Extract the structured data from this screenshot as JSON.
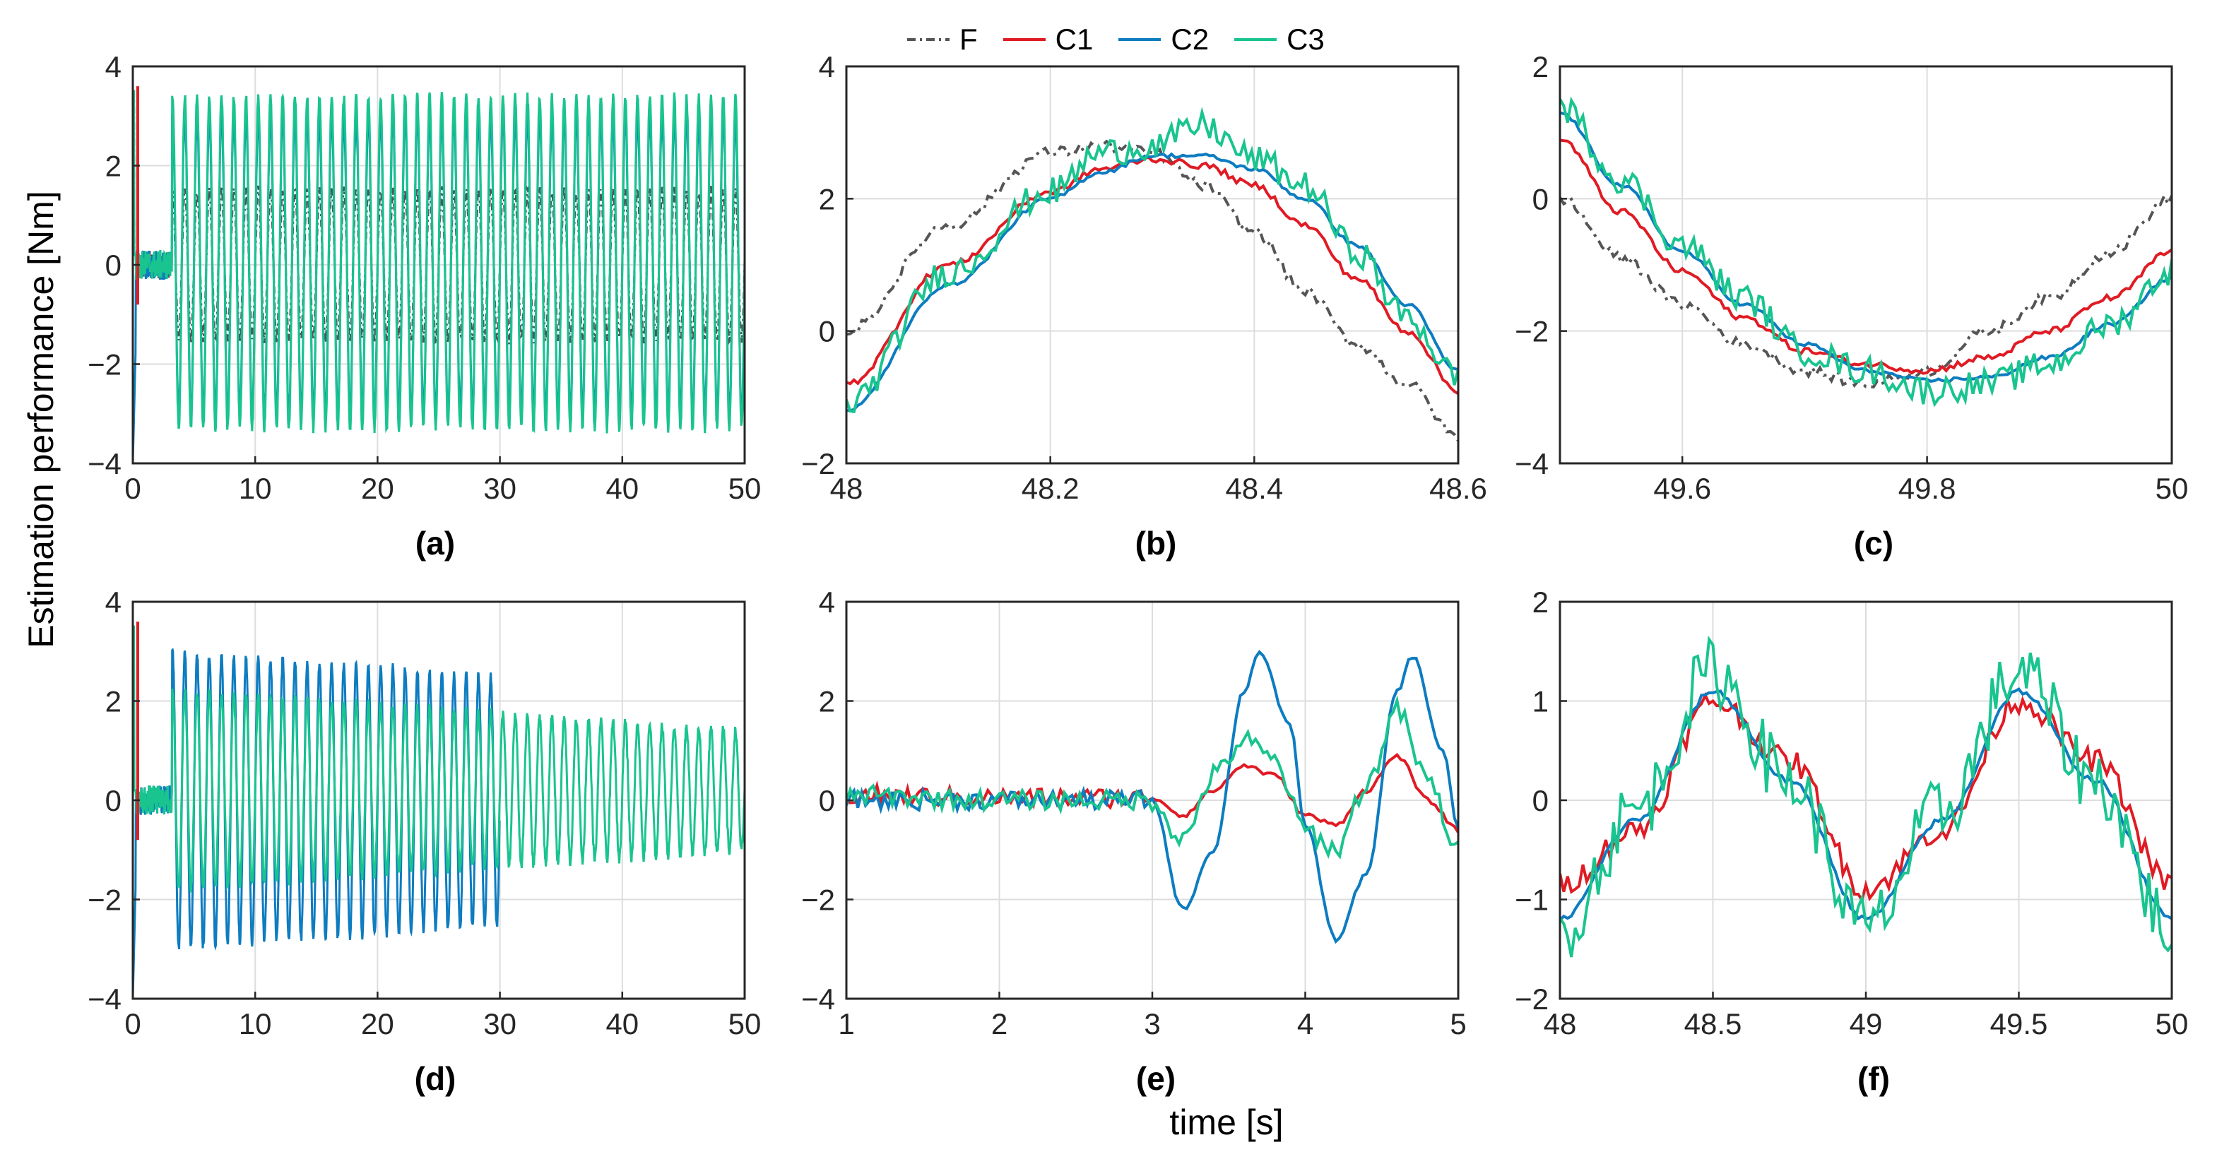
{
  "figure": {
    "ylabel": "Estimation performance [Nm]",
    "xlabel": "time [s]",
    "legend": [
      {
        "name": "F",
        "color": "#555555",
        "dash": "dash-dot"
      },
      {
        "name": "C1",
        "color": "#e01b24",
        "dash": "solid"
      },
      {
        "name": "C2",
        "color": "#0d7cc0",
        "dash": "solid"
      },
      {
        "name": "C3",
        "color": "#19c48f",
        "dash": "solid"
      }
    ],
    "legend_placement": "top-center"
  },
  "chart_data": [
    {
      "id": "a",
      "label": "(a)",
      "type": "line",
      "xlim": [
        0,
        50
      ],
      "ylim": [
        -4,
        4
      ],
      "xticks": [
        0,
        10,
        20,
        30,
        40,
        50
      ],
      "yticks": [
        -4,
        -2,
        0,
        2,
        4
      ],
      "grid": true,
      "series_description": "C1, C2, C3 oscillate near ±3.3 Nm after t≈3 s; small noise ±0.3 before; initial spikes at t≈0",
      "envelopes": {
        "C3": [
          -3.3,
          3.4
        ],
        "C2": [
          -3.0,
          3.0
        ],
        "F": [
          -1.5,
          1.5
        ]
      }
    },
    {
      "id": "b",
      "label": "(b)",
      "type": "line",
      "xlim": [
        48,
        48.6
      ],
      "ylim": [
        -2,
        4
      ],
      "xticks": [
        48,
        48.2,
        48.4,
        48.6
      ],
      "yticks": [
        -2,
        0,
        2,
        4
      ],
      "grid": true,
      "series": [
        {
          "name": "F",
          "x": [
            48.0,
            48.1,
            48.2,
            48.25,
            48.3,
            48.35,
            48.4,
            48.45,
            48.5,
            48.55,
            48.6
          ],
          "y": [
            0.0,
            1.6,
            2.7,
            2.8,
            2.7,
            2.2,
            1.5,
            0.6,
            -0.2,
            -0.8,
            -1.6
          ]
        },
        {
          "name": "C1",
          "x": [
            48.0,
            48.1,
            48.2,
            48.25,
            48.3,
            48.35,
            48.4,
            48.45,
            48.5,
            48.55,
            48.6
          ],
          "y": [
            -0.8,
            1.0,
            2.1,
            2.45,
            2.6,
            2.5,
            2.2,
            1.6,
            0.8,
            0.0,
            -0.9
          ]
        },
        {
          "name": "C2",
          "x": [
            48.0,
            48.1,
            48.2,
            48.25,
            48.3,
            48.35,
            48.4,
            48.45,
            48.5,
            48.55,
            48.6
          ],
          "y": [
            -1.2,
            0.7,
            2.0,
            2.4,
            2.65,
            2.65,
            2.45,
            2.0,
            1.3,
            0.4,
            -0.6
          ]
        },
        {
          "name": "C3",
          "x": [
            48.0,
            48.1,
            48.2,
            48.25,
            48.3,
            48.35,
            48.4,
            48.45,
            48.5,
            48.55,
            48.6
          ],
          "y": [
            -1.1,
            0.9,
            2.1,
            2.7,
            2.8,
            3.1,
            2.6,
            2.2,
            1.2,
            0.2,
            -0.7
          ]
        }
      ]
    },
    {
      "id": "c",
      "label": "(c)",
      "type": "line",
      "xlim": [
        49.5,
        50
      ],
      "ylim": [
        -4,
        2
      ],
      "xticks": [
        49.6,
        49.8,
        50
      ],
      "yticks": [
        -4,
        -2,
        0,
        2
      ],
      "grid": true,
      "series": [
        {
          "name": "F",
          "x": [
            49.5,
            49.55,
            49.6,
            49.65,
            49.7,
            49.75,
            49.8,
            49.85,
            49.9,
            49.95,
            50.0
          ],
          "y": [
            0.0,
            -0.9,
            -1.6,
            -2.2,
            -2.6,
            -2.8,
            -2.6,
            -2.0,
            -1.5,
            -0.8,
            0.0
          ]
        },
        {
          "name": "C1",
          "x": [
            49.5,
            49.55,
            49.6,
            49.65,
            49.7,
            49.75,
            49.8,
            49.85,
            49.9,
            49.95,
            50.0
          ],
          "y": [
            0.9,
            -0.2,
            -1.1,
            -1.8,
            -2.3,
            -2.5,
            -2.6,
            -2.4,
            -2.0,
            -1.5,
            -0.8
          ]
        },
        {
          "name": "C2",
          "x": [
            49.5,
            49.55,
            49.6,
            49.65,
            49.7,
            49.75,
            49.8,
            49.85,
            49.9,
            49.95,
            50.0
          ],
          "y": [
            1.3,
            0.2,
            -0.8,
            -1.6,
            -2.2,
            -2.6,
            -2.75,
            -2.7,
            -2.4,
            -1.9,
            -1.2
          ]
        },
        {
          "name": "C3",
          "x": [
            49.5,
            49.55,
            49.6,
            49.65,
            49.7,
            49.75,
            49.8,
            49.85,
            49.9,
            49.95,
            50.0
          ],
          "y": [
            1.4,
            0.3,
            -0.7,
            -1.5,
            -2.3,
            -2.6,
            -2.9,
            -2.8,
            -2.5,
            -1.9,
            -1.1
          ]
        }
      ]
    },
    {
      "id": "d",
      "label": "(d)",
      "type": "line",
      "xlim": [
        0,
        50
      ],
      "ylim": [
        -4,
        4
      ],
      "xticks": [
        0,
        10,
        20,
        30,
        40,
        50
      ],
      "yticks": [
        -4,
        -2,
        0,
        2,
        4
      ],
      "grid": true,
      "series_description": "C2 oscillates ±3.0 decaying from t≈3 to t≈30; C3 oscillates with envelope shrinking to ±1.5 by t=50",
      "envelopes": {
        "C2": [
          -3.0,
          3.0
        ],
        "C3": [
          -1.5,
          2.0
        ]
      }
    },
    {
      "id": "e",
      "label": "(e)",
      "type": "line",
      "xlim": [
        1,
        5
      ],
      "ylim": [
        -4,
        4
      ],
      "xticks": [
        1,
        2,
        3,
        4,
        5
      ],
      "yticks": [
        -4,
        -2,
        0,
        2,
        4
      ],
      "grid": true,
      "series": [
        {
          "name": "C1",
          "x": [
            1,
            2,
            3,
            3.2,
            3.4,
            3.6,
            3.8,
            4.0,
            4.2,
            4.4,
            4.6,
            4.8,
            5.0
          ],
          "y": [
            0.1,
            0.05,
            0.05,
            -0.3,
            0.2,
            0.7,
            0.5,
            -0.3,
            -0.5,
            0.2,
            0.9,
            0.0,
            -0.6
          ]
        },
        {
          "name": "C2",
          "x": [
            1,
            2,
            3,
            3.2,
            3.4,
            3.6,
            3.7,
            3.9,
            4.0,
            4.2,
            4.4,
            4.6,
            4.7,
            4.9,
            5.0
          ],
          "y": [
            0.0,
            0.0,
            0.0,
            -2.2,
            -1.0,
            2.2,
            3.0,
            1.5,
            -0.5,
            -2.8,
            -1.5,
            2.2,
            2.9,
            1.0,
            -0.6
          ]
        },
        {
          "name": "C3",
          "x": [
            1,
            2,
            3,
            3.2,
            3.4,
            3.6,
            3.8,
            4.0,
            4.2,
            4.4,
            4.6,
            4.8,
            5.0
          ],
          "y": [
            0.1,
            0.0,
            0.0,
            -0.8,
            0.5,
            1.2,
            0.8,
            -0.6,
            -1.0,
            0.3,
            1.8,
            0.4,
            -1.0
          ]
        }
      ]
    },
    {
      "id": "f",
      "label": "(f)",
      "type": "line",
      "xlim": [
        48,
        50
      ],
      "ylim": [
        -2,
        2
      ],
      "xticks": [
        48,
        48.5,
        49,
        49.5,
        50
      ],
      "yticks": [
        -2,
        -1,
        0,
        1,
        2
      ],
      "grid": true,
      "series": [
        {
          "name": "C1",
          "x": [
            48.0,
            48.25,
            48.5,
            48.75,
            49.0,
            49.25,
            49.5,
            49.75,
            50.0
          ],
          "y": [
            -0.85,
            -0.3,
            1.0,
            0.4,
            -0.9,
            -0.3,
            1.0,
            0.4,
            -0.85
          ]
        },
        {
          "name": "C2",
          "x": [
            48.0,
            48.25,
            48.5,
            48.75,
            49.0,
            49.25,
            49.5,
            49.75,
            50.0
          ],
          "y": [
            -1.2,
            -0.2,
            1.1,
            0.2,
            -1.2,
            -0.2,
            1.1,
            0.2,
            -1.2
          ]
        },
        {
          "name": "C3",
          "x": [
            48.0,
            48.25,
            48.5,
            48.75,
            49.0,
            49.25,
            49.5,
            49.75,
            50.0
          ],
          "y": [
            -1.3,
            -0.1,
            1.3,
            0.2,
            -1.3,
            -0.1,
            1.3,
            0.2,
            -1.3
          ]
        }
      ]
    }
  ]
}
